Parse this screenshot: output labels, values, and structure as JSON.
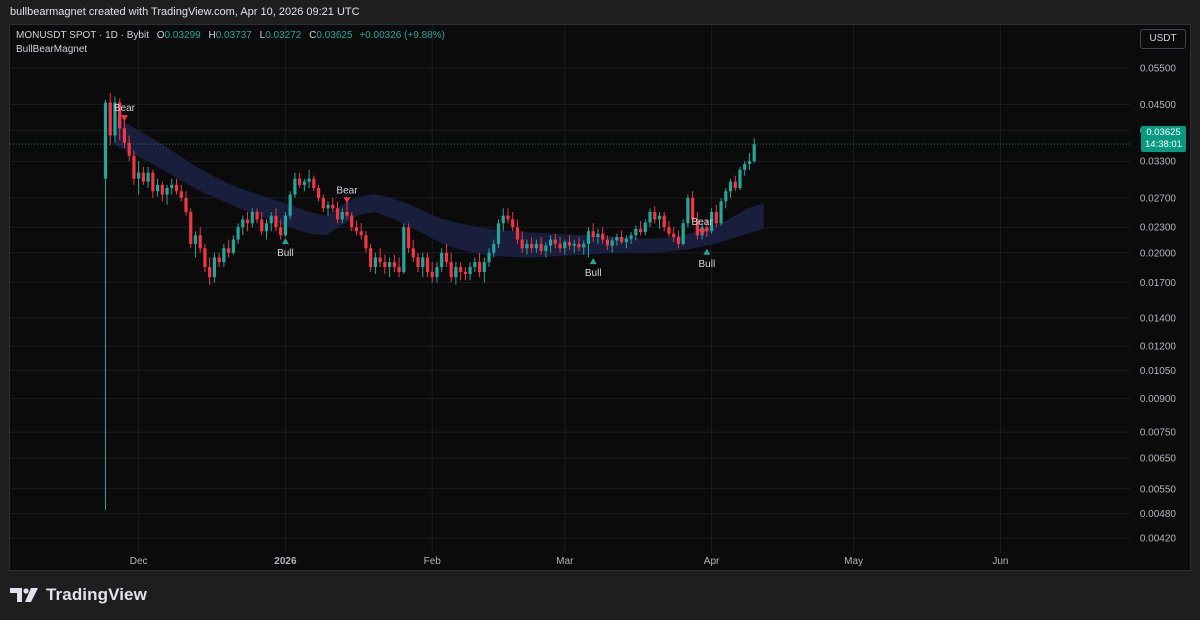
{
  "caption": "bullbearmagnet created with TradingView.com, Apr 10, 2026 09:21 UTC",
  "legend": {
    "symbol": "MONUSDT SPOT · 1D · Bybit",
    "open_label": "O",
    "open": "0.03299",
    "high_label": "H",
    "high": "0.03737",
    "low_label": "L",
    "low": "0.03272",
    "close_label": "C",
    "close": "0.03625",
    "change": "+0.00326 (+9.88%)"
  },
  "indicator": "BullBearMagnet",
  "currency_button": "USDT",
  "price_badge": {
    "price": "0.03625",
    "countdown": "14:38:01"
  },
  "brand": "TradingView",
  "colors": {
    "up": "#26a69a",
    "down": "#f23645",
    "band": "#1a2040",
    "bg": "#0b0b0b"
  },
  "chart_data": {
    "type": "candlestick",
    "y_scale": "log",
    "ylim": [
      0.004,
      0.059
    ],
    "y_ticks": [
      "0.05500",
      "0.04500",
      "0.03900",
      "0.03300",
      "0.02700",
      "0.02300",
      "0.02000",
      "0.01700",
      "0.01400",
      "0.01200",
      "0.01050",
      "0.00900",
      "0.00750",
      "0.00650",
      "0.00550",
      "0.00480",
      "0.00420"
    ],
    "x_ticks": [
      {
        "label": "Dec",
        "date": "2025-12-01"
      },
      {
        "label": "2026",
        "date": "2026-01-01"
      },
      {
        "label": "Feb",
        "date": "2026-02-01"
      },
      {
        "label": "Mar",
        "date": "2026-03-01"
      },
      {
        "label": "Apr",
        "date": "2026-04-01"
      },
      {
        "label": "May",
        "date": "2026-05-01"
      },
      {
        "label": "Jun",
        "date": "2026-06-01"
      }
    ],
    "start_date": "2025-11-24",
    "candles": [
      [
        0.03,
        0.0462,
        0.0049,
        0.0455
      ],
      [
        0.0455,
        0.048,
        0.036,
        0.038
      ],
      [
        0.038,
        0.047,
        0.0365,
        0.0455
      ],
      [
        0.0455,
        0.0465,
        0.037,
        0.0395
      ],
      [
        0.0395,
        0.042,
        0.0355,
        0.0365
      ],
      [
        0.0365,
        0.038,
        0.033,
        0.034
      ],
      [
        0.034,
        0.035,
        0.029,
        0.03
      ],
      [
        0.03,
        0.033,
        0.0275,
        0.031
      ],
      [
        0.031,
        0.032,
        0.029,
        0.0295
      ],
      [
        0.0295,
        0.032,
        0.0285,
        0.031
      ],
      [
        0.031,
        0.0315,
        0.027,
        0.028
      ],
      [
        0.028,
        0.03,
        0.0272,
        0.029
      ],
      [
        0.029,
        0.0295,
        0.0265,
        0.0275
      ],
      [
        0.0275,
        0.029,
        0.026,
        0.0285
      ],
      [
        0.0285,
        0.03,
        0.0275,
        0.029
      ],
      [
        0.029,
        0.03,
        0.0275,
        0.028
      ],
      [
        0.028,
        0.029,
        0.0265,
        0.027
      ],
      [
        0.027,
        0.028,
        0.0245,
        0.025
      ],
      [
        0.025,
        0.0255,
        0.0205,
        0.021
      ],
      [
        0.021,
        0.0225,
        0.0195,
        0.022
      ],
      [
        0.022,
        0.023,
        0.02,
        0.0205
      ],
      [
        0.0205,
        0.021,
        0.018,
        0.0185
      ],
      [
        0.0185,
        0.0195,
        0.0168,
        0.0175
      ],
      [
        0.0175,
        0.02,
        0.017,
        0.0195
      ],
      [
        0.0195,
        0.02,
        0.0185,
        0.019
      ],
      [
        0.019,
        0.021,
        0.0185,
        0.0205
      ],
      [
        0.0205,
        0.0215,
        0.0195,
        0.02
      ],
      [
        0.02,
        0.022,
        0.0198,
        0.0215
      ],
      [
        0.0215,
        0.0235,
        0.021,
        0.023
      ],
      [
        0.023,
        0.0245,
        0.022,
        0.024
      ],
      [
        0.024,
        0.025,
        0.0225,
        0.0235
      ],
      [
        0.0235,
        0.0255,
        0.023,
        0.025
      ],
      [
        0.025,
        0.0255,
        0.0235,
        0.024
      ],
      [
        0.024,
        0.025,
        0.022,
        0.0225
      ],
      [
        0.0225,
        0.024,
        0.0215,
        0.0235
      ],
      [
        0.0235,
        0.025,
        0.0225,
        0.0245
      ],
      [
        0.0245,
        0.0255,
        0.0225,
        0.023
      ],
      [
        0.023,
        0.024,
        0.0215,
        0.022
      ],
      [
        0.022,
        0.025,
        0.0218,
        0.0245
      ],
      [
        0.0245,
        0.028,
        0.024,
        0.0275
      ],
      [
        0.0275,
        0.031,
        0.027,
        0.03
      ],
      [
        0.03,
        0.031,
        0.0285,
        0.029
      ],
      [
        0.029,
        0.03,
        0.028,
        0.0295
      ],
      [
        0.0295,
        0.0315,
        0.0285,
        0.03
      ],
      [
        0.03,
        0.0305,
        0.028,
        0.0285
      ],
      [
        0.0285,
        0.029,
        0.0265,
        0.027
      ],
      [
        0.027,
        0.0275,
        0.025,
        0.0255
      ],
      [
        0.0255,
        0.0265,
        0.0245,
        0.026
      ],
      [
        0.026,
        0.027,
        0.025,
        0.0255
      ],
      [
        0.0255,
        0.0265,
        0.0235,
        0.024
      ],
      [
        0.024,
        0.0255,
        0.0235,
        0.025
      ],
      [
        0.025,
        0.0265,
        0.024,
        0.0245
      ],
      [
        0.0245,
        0.025,
        0.0225,
        0.023
      ],
      [
        0.023,
        0.0238,
        0.022,
        0.0225
      ],
      [
        0.0225,
        0.0235,
        0.0215,
        0.022
      ],
      [
        0.022,
        0.0225,
        0.02,
        0.0205
      ],
      [
        0.0205,
        0.021,
        0.018,
        0.0185
      ],
      [
        0.0185,
        0.02,
        0.0178,
        0.0195
      ],
      [
        0.0195,
        0.0205,
        0.0185,
        0.019
      ],
      [
        0.019,
        0.0198,
        0.0178,
        0.0185
      ],
      [
        0.0185,
        0.0195,
        0.0175,
        0.019
      ],
      [
        0.019,
        0.0198,
        0.018,
        0.0185
      ],
      [
        0.0185,
        0.0195,
        0.0175,
        0.018
      ],
      [
        0.018,
        0.0235,
        0.0178,
        0.023
      ],
      [
        0.023,
        0.0235,
        0.02,
        0.0205
      ],
      [
        0.0205,
        0.0215,
        0.019,
        0.0195
      ],
      [
        0.0195,
        0.02,
        0.018,
        0.0185
      ],
      [
        0.0185,
        0.02,
        0.0175,
        0.0195
      ],
      [
        0.0195,
        0.02,
        0.0175,
        0.018
      ],
      [
        0.018,
        0.019,
        0.017,
        0.0175
      ],
      [
        0.0175,
        0.019,
        0.017,
        0.0185
      ],
      [
        0.0185,
        0.0205,
        0.018,
        0.02
      ],
      [
        0.02,
        0.021,
        0.0185,
        0.019
      ],
      [
        0.019,
        0.02,
        0.017,
        0.0175
      ],
      [
        0.0175,
        0.019,
        0.0168,
        0.0185
      ],
      [
        0.0185,
        0.019,
        0.0172,
        0.018
      ],
      [
        0.018,
        0.0185,
        0.0172,
        0.0178
      ],
      [
        0.0178,
        0.019,
        0.0172,
        0.0185
      ],
      [
        0.0185,
        0.0195,
        0.018,
        0.019
      ],
      [
        0.019,
        0.02,
        0.0175,
        0.018
      ],
      [
        0.018,
        0.0195,
        0.017,
        0.019
      ],
      [
        0.019,
        0.0205,
        0.0185,
        0.02
      ],
      [
        0.02,
        0.0215,
        0.0195,
        0.021
      ],
      [
        0.021,
        0.024,
        0.0205,
        0.0235
      ],
      [
        0.0235,
        0.0255,
        0.0225,
        0.0245
      ],
      [
        0.0245,
        0.0255,
        0.0235,
        0.024
      ],
      [
        0.024,
        0.025,
        0.0225,
        0.023
      ],
      [
        0.023,
        0.024,
        0.021,
        0.0215
      ],
      [
        0.0215,
        0.0225,
        0.02,
        0.0205
      ],
      [
        0.0205,
        0.0215,
        0.0198,
        0.021
      ],
      [
        0.021,
        0.0218,
        0.02,
        0.0205
      ],
      [
        0.0205,
        0.0215,
        0.02,
        0.021
      ],
      [
        0.021,
        0.0218,
        0.0198,
        0.0202
      ],
      [
        0.0202,
        0.0212,
        0.0195,
        0.0208
      ],
      [
        0.0208,
        0.022,
        0.02,
        0.0215
      ],
      [
        0.0215,
        0.0222,
        0.0205,
        0.021
      ],
      [
        0.021,
        0.0218,
        0.02,
        0.0205
      ],
      [
        0.0205,
        0.0215,
        0.0198,
        0.0212
      ],
      [
        0.0212,
        0.022,
        0.0203,
        0.0208
      ],
      [
        0.0208,
        0.0215,
        0.02,
        0.021
      ],
      [
        0.021,
        0.0218,
        0.0202,
        0.0206
      ],
      [
        0.0206,
        0.0214,
        0.0198,
        0.021
      ],
      [
        0.021,
        0.023,
        0.0195,
        0.0225
      ],
      [
        0.0225,
        0.0235,
        0.0212,
        0.0218
      ],
      [
        0.0218,
        0.0228,
        0.021,
        0.0222
      ],
      [
        0.0222,
        0.023,
        0.021,
        0.0215
      ],
      [
        0.0215,
        0.022,
        0.0203,
        0.0208
      ],
      [
        0.0208,
        0.0218,
        0.02,
        0.0214
      ],
      [
        0.0214,
        0.0222,
        0.0208,
        0.0218
      ],
      [
        0.0218,
        0.0226,
        0.021,
        0.0212
      ],
      [
        0.0212,
        0.022,
        0.0205,
        0.0216
      ],
      [
        0.0216,
        0.0224,
        0.021,
        0.022
      ],
      [
        0.022,
        0.0232,
        0.0214,
        0.0228
      ],
      [
        0.0228,
        0.0238,
        0.022,
        0.0224
      ],
      [
        0.0224,
        0.024,
        0.022,
        0.0236
      ],
      [
        0.0236,
        0.0255,
        0.023,
        0.025
      ],
      [
        0.025,
        0.0258,
        0.0235,
        0.024
      ],
      [
        0.024,
        0.025,
        0.0228,
        0.0245
      ],
      [
        0.0245,
        0.025,
        0.0225,
        0.023
      ],
      [
        0.023,
        0.0238,
        0.0218,
        0.0222
      ],
      [
        0.0222,
        0.023,
        0.0212,
        0.0218
      ],
      [
        0.0218,
        0.0226,
        0.0205,
        0.021
      ],
      [
        0.021,
        0.024,
        0.0208,
        0.0235
      ],
      [
        0.0235,
        0.0275,
        0.023,
        0.027
      ],
      [
        0.027,
        0.028,
        0.0235,
        0.024
      ],
      [
        0.024,
        0.025,
        0.0215,
        0.022
      ],
      [
        0.022,
        0.0235,
        0.0215,
        0.023
      ],
      [
        0.023,
        0.024,
        0.0218,
        0.0225
      ],
      [
        0.0225,
        0.0255,
        0.0222,
        0.025
      ],
      [
        0.025,
        0.026,
        0.023,
        0.0235
      ],
      [
        0.0235,
        0.027,
        0.0232,
        0.0265
      ],
      [
        0.0265,
        0.0285,
        0.0255,
        0.028
      ],
      [
        0.028,
        0.03,
        0.027,
        0.0295
      ],
      [
        0.0295,
        0.0305,
        0.028,
        0.0285
      ],
      [
        0.0285,
        0.032,
        0.0282,
        0.0315
      ],
      [
        0.0315,
        0.033,
        0.0305,
        0.0325
      ],
      [
        0.0325,
        0.0345,
        0.0315,
        0.033
      ],
      [
        0.03299,
        0.03737,
        0.03272,
        0.03625
      ]
    ],
    "band_upper": [
      0.042,
      0.04,
      0.038,
      0.036,
      0.034,
      0.032,
      0.0305,
      0.0292,
      0.0282,
      0.0274,
      0.0266,
      0.0258,
      0.025,
      0.0245,
      0.026,
      0.0272,
      0.0276,
      0.027,
      0.0262,
      0.0252,
      0.0242,
      0.0236,
      0.0232,
      0.0228,
      0.0226,
      0.0224,
      0.0223,
      0.0222,
      0.0221,
      0.022,
      0.0219,
      0.0218,
      0.0217,
      0.0216,
      0.0217,
      0.022,
      0.0225,
      0.0232,
      0.0242,
      0.0255,
      0.0262
    ],
    "band_lower": [
      0.036,
      0.0345,
      0.033,
      0.0314,
      0.0298,
      0.0284,
      0.0272,
      0.0262,
      0.0252,
      0.0244,
      0.0236,
      0.0228,
      0.0222,
      0.022,
      0.0232,
      0.0246,
      0.025,
      0.0242,
      0.0232,
      0.0222,
      0.0212,
      0.0205,
      0.02,
      0.0197,
      0.0196,
      0.0195,
      0.0195,
      0.0196,
      0.0197,
      0.0198,
      0.0199,
      0.02,
      0.02,
      0.02,
      0.0201,
      0.0203,
      0.0206,
      0.021,
      0.0216,
      0.0222,
      0.0228
    ],
    "signals": [
      {
        "label": "Bear",
        "type": "bear",
        "candle": 4,
        "price": 0.042
      },
      {
        "label": "Bull",
        "type": "bull",
        "candle": 38,
        "price": 0.0212
      },
      {
        "label": "Bear",
        "type": "bear",
        "candle": 51,
        "price": 0.0268
      },
      {
        "label": "Bull",
        "type": "bull",
        "candle": 103,
        "price": 0.019
      },
      {
        "label": "Bear",
        "type": "bear",
        "candle": 126,
        "price": 0.0225
      },
      {
        "label": "Bull",
        "type": "bull",
        "candle": 127,
        "price": 0.02
      }
    ],
    "last_price": 0.03625
  }
}
